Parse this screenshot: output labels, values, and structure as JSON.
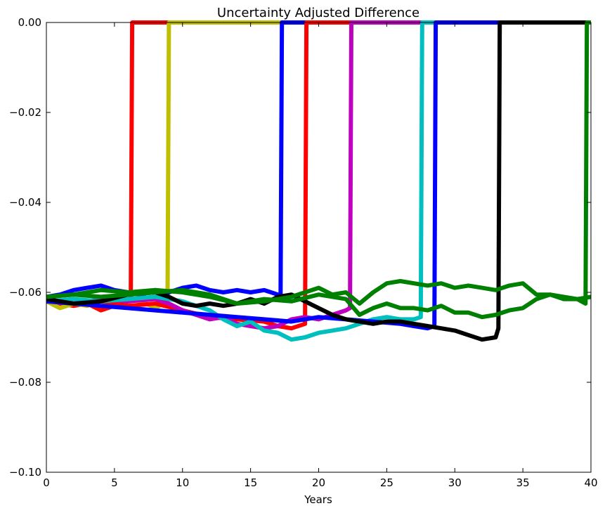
{
  "chart_data": {
    "type": "line",
    "title": "Uncertainty Adjusted Difference",
    "xlabel": "Years",
    "ylabel": "",
    "xlim": [
      0,
      40
    ],
    "ylim": [
      -0.1,
      0.0
    ],
    "x_ticks": [
      0,
      5,
      10,
      15,
      20,
      25,
      30,
      35,
      40
    ],
    "x_tick_labels": [
      "0",
      "5",
      "10",
      "15",
      "20",
      "25",
      "30",
      "35",
      "40"
    ],
    "y_ticks": [
      0.0,
      -0.02,
      -0.04,
      -0.06,
      -0.08,
      -0.1
    ],
    "y_tick_labels": [
      "0.00",
      "−0.02",
      "−0.04",
      "−0.06",
      "−0.08",
      "−0.10"
    ],
    "grid": false,
    "legend": "none",
    "series": [
      {
        "color": "#ff0000",
        "x": [
          0,
          1,
          2,
          3,
          4,
          5,
          6,
          6.2,
          6.3,
          40
        ],
        "y": [
          -0.0615,
          -0.0625,
          -0.063,
          -0.0625,
          -0.064,
          -0.063,
          -0.062,
          -0.062,
          0.0,
          0.0
        ]
      },
      {
        "color": "#bfbf00",
        "x": [
          0,
          1,
          2,
          3,
          4,
          5,
          6,
          7,
          8,
          8.9,
          9.0,
          40
        ],
        "y": [
          -0.062,
          -0.0635,
          -0.0625,
          -0.063,
          -0.062,
          -0.0625,
          -0.0615,
          -0.062,
          -0.0635,
          -0.062,
          0.0,
          0.0
        ]
      },
      {
        "color": "#0000ff",
        "x": [
          0,
          1,
          2,
          3,
          4,
          5,
          6,
          7,
          8,
          9,
          10,
          11,
          12,
          13,
          14,
          15,
          16,
          17,
          17.2,
          17.3,
          40
        ],
        "y": [
          -0.061,
          -0.0605,
          -0.0595,
          -0.059,
          -0.0585,
          -0.0595,
          -0.06,
          -0.0605,
          -0.0595,
          -0.06,
          -0.059,
          -0.0585,
          -0.0595,
          -0.06,
          -0.0595,
          -0.06,
          -0.0595,
          -0.0605,
          -0.0605,
          0.0,
          0.0
        ]
      },
      {
        "color": "#ff0000",
        "x": [
          0,
          2,
          4,
          6,
          8,
          10,
          12,
          14,
          16,
          17,
          18,
          19,
          19.1,
          40
        ],
        "y": [
          -0.0615,
          -0.0625,
          -0.062,
          -0.063,
          -0.0625,
          -0.064,
          -0.0655,
          -0.066,
          -0.0665,
          -0.0675,
          -0.068,
          -0.067,
          0.0,
          0.0
        ]
      },
      {
        "color": "#bf00bf",
        "x": [
          0,
          2,
          4,
          6,
          8,
          9,
          10,
          11,
          12,
          13,
          14,
          15,
          16,
          17,
          18,
          19,
          20,
          21,
          22,
          22.3,
          22.4,
          40
        ],
        "y": [
          -0.062,
          -0.0625,
          -0.0615,
          -0.062,
          -0.0615,
          -0.0625,
          -0.064,
          -0.065,
          -0.066,
          -0.0655,
          -0.067,
          -0.0675,
          -0.068,
          -0.0675,
          -0.066,
          -0.0655,
          -0.066,
          -0.065,
          -0.064,
          -0.0635,
          0.0,
          0.0
        ]
      },
      {
        "color": "#00bfbf",
        "x": [
          0,
          2,
          4,
          6,
          8,
          10,
          11,
          12,
          13,
          14,
          15,
          16,
          17,
          18,
          19,
          20,
          21,
          22,
          23,
          24,
          25,
          26,
          27,
          27.5,
          27.6,
          40
        ],
        "y": [
          -0.062,
          -0.0615,
          -0.062,
          -0.0615,
          -0.061,
          -0.062,
          -0.063,
          -0.064,
          -0.066,
          -0.0675,
          -0.0665,
          -0.0685,
          -0.069,
          -0.0705,
          -0.07,
          -0.069,
          -0.0685,
          -0.068,
          -0.067,
          -0.066,
          -0.0655,
          -0.066,
          -0.066,
          -0.0655,
          0.0,
          0.0
        ]
      },
      {
        "color": "#0000ff",
        "x": [
          0,
          2,
          4,
          6,
          8,
          10,
          12,
          14,
          16,
          18,
          20,
          22,
          24,
          26,
          27,
          28,
          28.5,
          28.6,
          40
        ],
        "y": [
          -0.062,
          -0.0625,
          -0.063,
          -0.0635,
          -0.064,
          -0.0645,
          -0.065,
          -0.0655,
          -0.066,
          -0.0665,
          -0.0655,
          -0.066,
          -0.0665,
          -0.067,
          -0.0675,
          -0.068,
          -0.0675,
          0.0,
          0.0
        ]
      },
      {
        "color": "#000000",
        "x": [
          0,
          2,
          4,
          6,
          8,
          9,
          10,
          11,
          12,
          13,
          14,
          15,
          16,
          17,
          18,
          19,
          20,
          21,
          22,
          23,
          24,
          25,
          26,
          27,
          28,
          29,
          30,
          31,
          32,
          33,
          33.2,
          33.3,
          40
        ],
        "y": [
          -0.0615,
          -0.0625,
          -0.062,
          -0.0605,
          -0.06,
          -0.061,
          -0.0625,
          -0.063,
          -0.0625,
          -0.063,
          -0.0625,
          -0.0615,
          -0.0625,
          -0.061,
          -0.0605,
          -0.062,
          -0.0635,
          -0.065,
          -0.066,
          -0.0665,
          -0.067,
          -0.0665,
          -0.0665,
          -0.067,
          -0.0675,
          -0.068,
          -0.0685,
          -0.0695,
          -0.0705,
          -0.07,
          -0.068,
          0.0,
          0.0
        ]
      },
      {
        "color": "#008000",
        "x": [
          0,
          2,
          4,
          6,
          8,
          10,
          12,
          14,
          16,
          18,
          19,
          20,
          21,
          22,
          23,
          24,
          25,
          26,
          27,
          28,
          29,
          30,
          31,
          32,
          33,
          34,
          35,
          36,
          37,
          38,
          39,
          39.6,
          39.7,
          40
        ],
        "y": [
          -0.061,
          -0.0605,
          -0.0595,
          -0.06,
          -0.0595,
          -0.06,
          -0.061,
          -0.0625,
          -0.062,
          -0.061,
          -0.06,
          -0.059,
          -0.0605,
          -0.06,
          -0.0625,
          -0.06,
          -0.058,
          -0.0575,
          -0.058,
          -0.0585,
          -0.058,
          -0.059,
          -0.0585,
          -0.059,
          -0.0595,
          -0.0585,
          -0.058,
          -0.0605,
          -0.0605,
          -0.0615,
          -0.0615,
          -0.0625,
          0.0,
          0.0
        ]
      },
      {
        "color": "#008000",
        "x": [
          0,
          2,
          4,
          6,
          8,
          10,
          12,
          14,
          16,
          18,
          20,
          22,
          23,
          24,
          25,
          26,
          27,
          28,
          29,
          30,
          31,
          32,
          33,
          34,
          35,
          36,
          37,
          38,
          39,
          40
        ],
        "y": [
          -0.061,
          -0.0605,
          -0.061,
          -0.0605,
          -0.06,
          -0.0595,
          -0.0605,
          -0.0625,
          -0.0615,
          -0.062,
          -0.0605,
          -0.0615,
          -0.065,
          -0.0635,
          -0.0625,
          -0.0635,
          -0.0635,
          -0.064,
          -0.063,
          -0.0645,
          -0.0645,
          -0.0655,
          -0.065,
          -0.064,
          -0.0635,
          -0.0615,
          -0.0605,
          -0.061,
          -0.0615,
          -0.061
        ]
      }
    ]
  }
}
